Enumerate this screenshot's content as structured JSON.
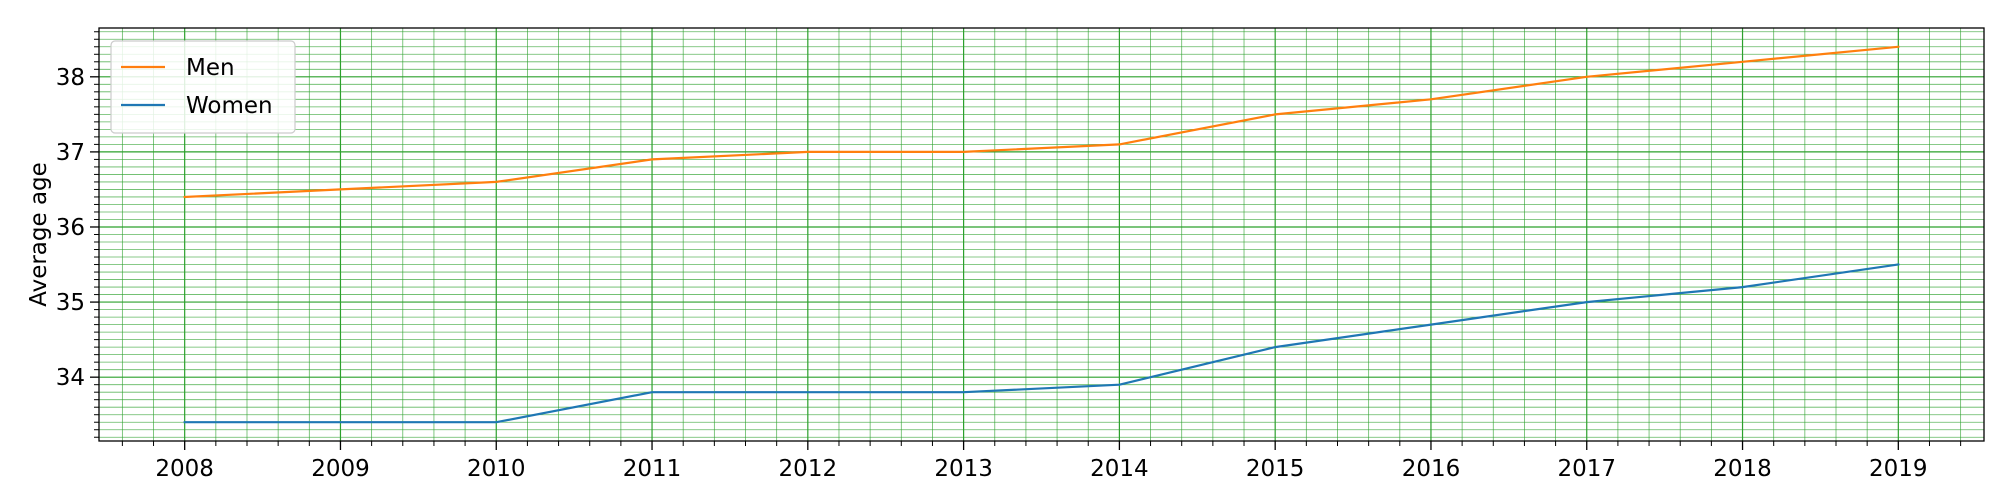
{
  "chart_data": {
    "type": "line",
    "title": "",
    "xlabel": "",
    "ylabel": "Average age",
    "x": [
      2008,
      2009,
      2010,
      2011,
      2012,
      2013,
      2014,
      2015,
      2016,
      2017,
      2018,
      2019
    ],
    "series": [
      {
        "name": "Men",
        "color": "#ff7f0e",
        "values": [
          36.4,
          36.5,
          36.6,
          36.9,
          37.0,
          37.0,
          37.1,
          37.5,
          37.7,
          38.0,
          38.2,
          38.4
        ]
      },
      {
        "name": "Women",
        "color": "#1f77b4",
        "values": [
          33.4,
          33.4,
          33.4,
          33.8,
          33.8,
          33.8,
          33.9,
          34.4,
          34.7,
          35.0,
          35.2,
          35.5
        ]
      }
    ],
    "xlim": [
      2007.45,
      2019.55
    ],
    "ylim": [
      33.15,
      38.65
    ],
    "xticks": [
      "2008",
      "2009",
      "2010",
      "2011",
      "2012",
      "2013",
      "2014",
      "2015",
      "2016",
      "2017",
      "2018",
      "2019"
    ],
    "yticks": [
      "34",
      "35",
      "36",
      "37",
      "38"
    ],
    "grid": true,
    "minor_grid": true,
    "grid_color": "#2ca02c",
    "legend": "top-left"
  }
}
